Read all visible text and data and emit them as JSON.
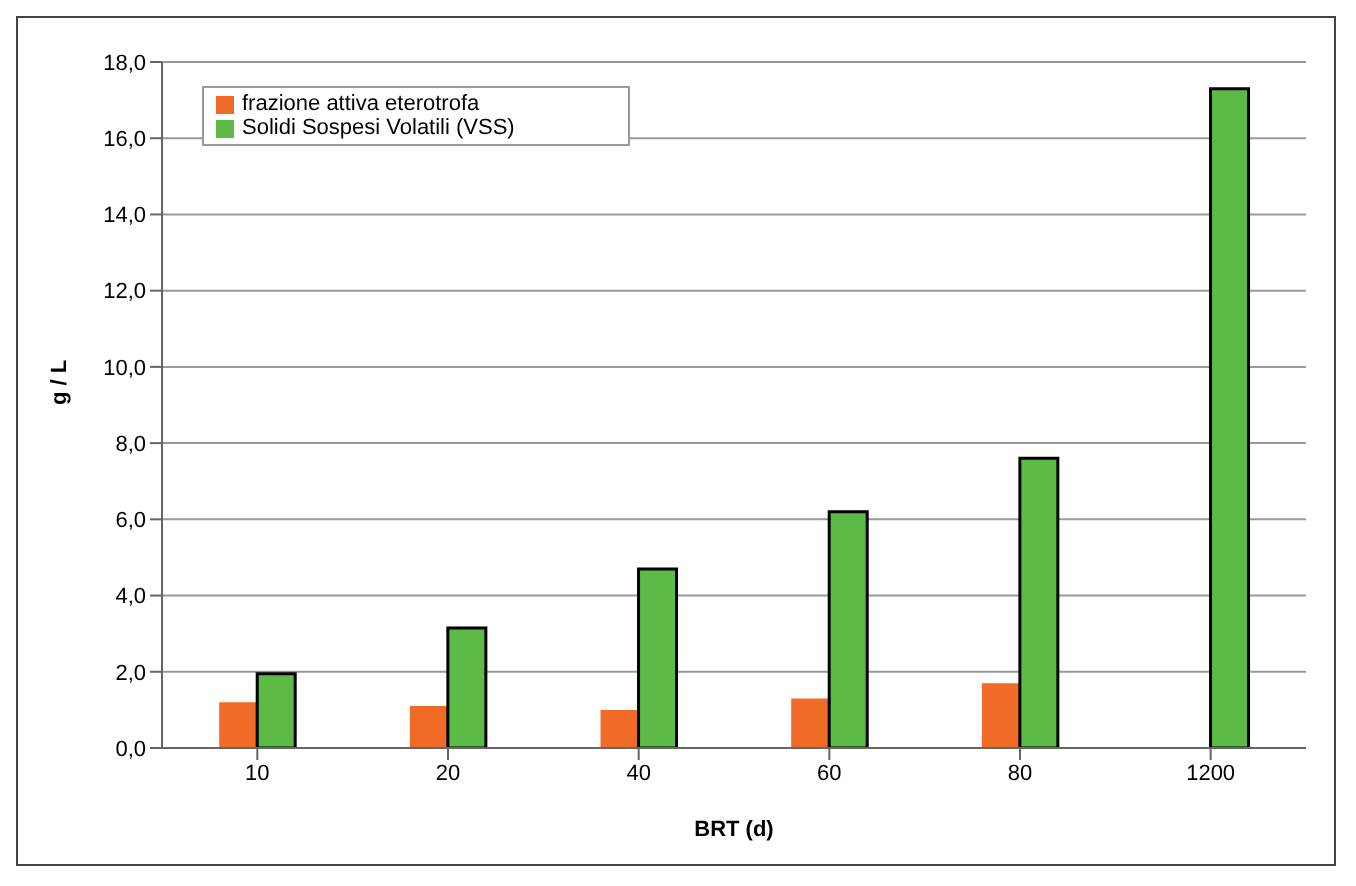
{
  "chart_data": {
    "type": "bar",
    "xlabel": "BRT (d)",
    "ylabel": "g / L",
    "categories": [
      "10",
      "20",
      "40",
      "60",
      "80",
      "1200"
    ],
    "series": [
      {
        "name": "frazione attiva eterotrofa",
        "color": "#f06a28",
        "values": [
          1.2,
          1.1,
          1.0,
          1.3,
          1.7,
          null
        ]
      },
      {
        "name": "Solidi Sospesi Volatili (VSS)",
        "color": "#5dba47",
        "values": [
          1.95,
          3.15,
          4.7,
          6.2,
          7.6,
          17.3
        ]
      }
    ],
    "ylim": [
      0,
      18
    ],
    "yticks": [
      {
        "value": 0,
        "label": "0,0"
      },
      {
        "value": 2,
        "label": "2,0"
      },
      {
        "value": 4,
        "label": "4,0"
      },
      {
        "value": 6,
        "label": "6,0"
      },
      {
        "value": 8,
        "label": "8,0"
      },
      {
        "value": 10,
        "label": "10,0"
      },
      {
        "value": 12,
        "label": "12,0"
      },
      {
        "value": 14,
        "label": "14,0"
      },
      {
        "value": 16,
        "label": "16,0"
      },
      {
        "value": 18,
        "label": "18,0"
      }
    ],
    "grid": "y",
    "legend": "top left"
  }
}
